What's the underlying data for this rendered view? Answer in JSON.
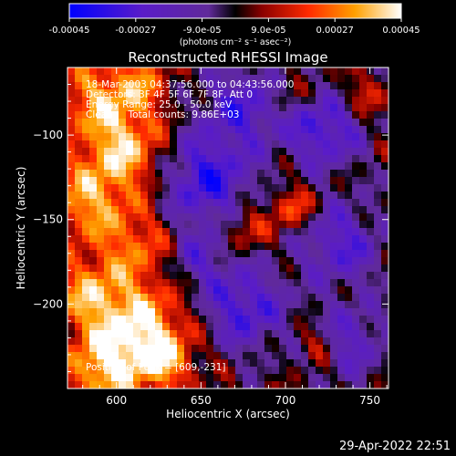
{
  "colorbar": {
    "tick_labels": [
      "-0.00045",
      "-0.00027",
      "-9.0e-05",
      "9.0e-05",
      "0.00027",
      "0.00045"
    ],
    "unit_label": "(photons cm⁻² s⁻¹ asec⁻²)"
  },
  "chart_data": {
    "type": "heatmap",
    "title": "Reconstructed RHESSI Image",
    "xlabel": "Heliocentric X (arcsec)",
    "ylabel": "Heliocentric Y (arcsec)",
    "xlim": [
      571,
      761
    ],
    "ylim": [
      -250,
      -60
    ],
    "xticks": [
      600,
      650,
      700,
      750
    ],
    "yticks": [
      -100,
      -150,
      -200
    ],
    "clim": [
      -0.00045,
      0.00045
    ],
    "peak": [
      609,
      -231
    ],
    "grid": false
  },
  "annotations": {
    "time_range": "18-Mar-2003 04:37:56.000 to 04:43:56.000",
    "detectors": "Detectors: 3F 4F 5F 6F 7F 8F, Att 0",
    "energy": "Energy Range: 25.0 - 50.0 keV",
    "method": "Clean     Total counts: 9.86E+03",
    "peak": "Position of Peak = [609,-231]"
  },
  "timestamp": "29-Apr-2022 22:51"
}
